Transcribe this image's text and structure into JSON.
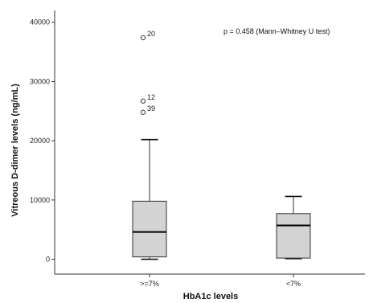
{
  "chart_data": {
    "type": "boxplot",
    "xlabel": "HbA1c levels",
    "ylabel": "Vitreous D-dimer levels (ng/mL)",
    "annotation": "p = 0.458 (Mann–Whitney U test)",
    "ylim": [
      -2500,
      42000
    ],
    "yticks": [
      0,
      10000,
      20000,
      30000,
      40000
    ],
    "grid": false,
    "box_color": "#d3d3d3",
    "categories": [
      ">=7%",
      "<7%"
    ],
    "boxes": [
      {
        "category": ">=7%",
        "whisker_low": 0,
        "q1": 400,
        "median": 4600,
        "q3": 9800,
        "whisker_high": 20200,
        "outliers": [
          {
            "label": "20",
            "value": 37400
          },
          {
            "label": "12",
            "value": 26700
          },
          {
            "label": "39",
            "value": 24800
          }
        ]
      },
      {
        "category": "<7%",
        "whisker_low": 100,
        "q1": 200,
        "median": 5700,
        "q3": 7700,
        "whisker_high": 10600,
        "outliers": []
      }
    ]
  }
}
